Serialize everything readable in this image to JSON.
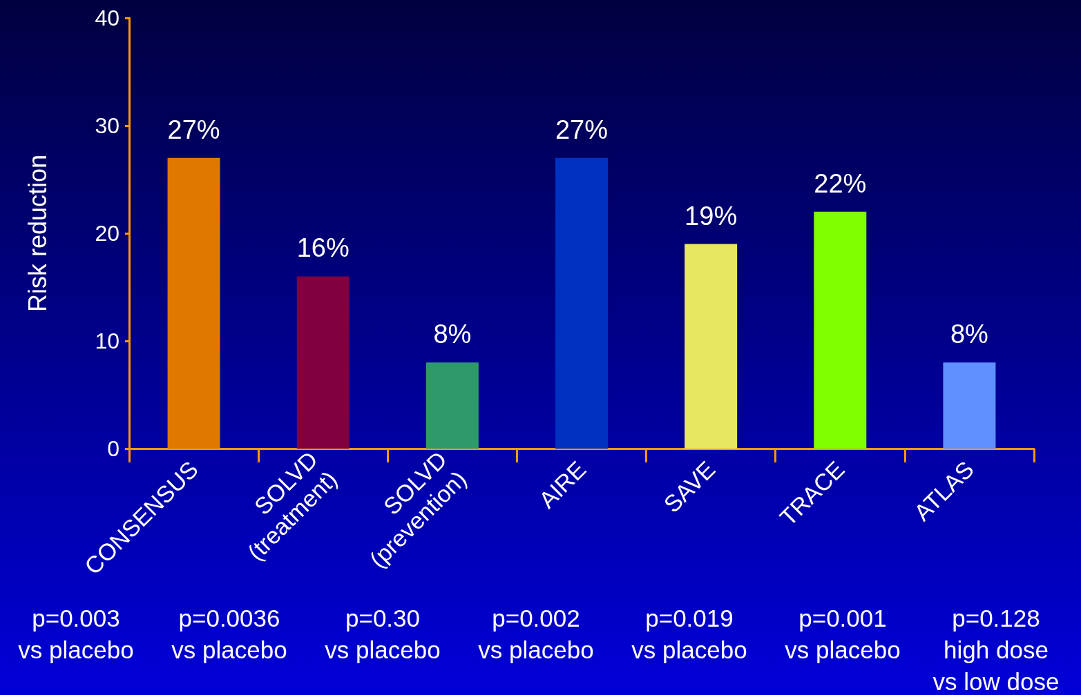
{
  "chart_data": {
    "type": "bar",
    "ylabel": "Risk reduction",
    "categories": [
      "CONSENSUS",
      "SOLVD\n(treatment)",
      "SOLVD\n(prevention)",
      "AIRE",
      "SAVE",
      "TRACE",
      "ATLAS"
    ],
    "values": [
      27,
      16,
      8,
      27,
      19,
      22,
      8
    ],
    "colors": [
      "#e07800",
      "#800040",
      "#2e9a6a",
      "#0030c0",
      "#e8e860",
      "#80ff00",
      "#6090ff"
    ],
    "value_labels": [
      "27%",
      "16%",
      "8%",
      "27%",
      "19%",
      "22%",
      "8%"
    ],
    "ylim": [
      0,
      40
    ],
    "yticks": [
      0,
      10,
      20,
      30,
      40
    ],
    "grid": false,
    "annotations": [
      "p=0.003\nvs placebo",
      "p=0.0036\nvs placebo",
      "p=0.30\nvs placebo",
      "p=0.002\nvs placebo",
      "p=0.019\nvs placebo",
      "p=0.001\nvs placebo",
      "p=0.128\nhigh dose\nvs low dose"
    ]
  }
}
